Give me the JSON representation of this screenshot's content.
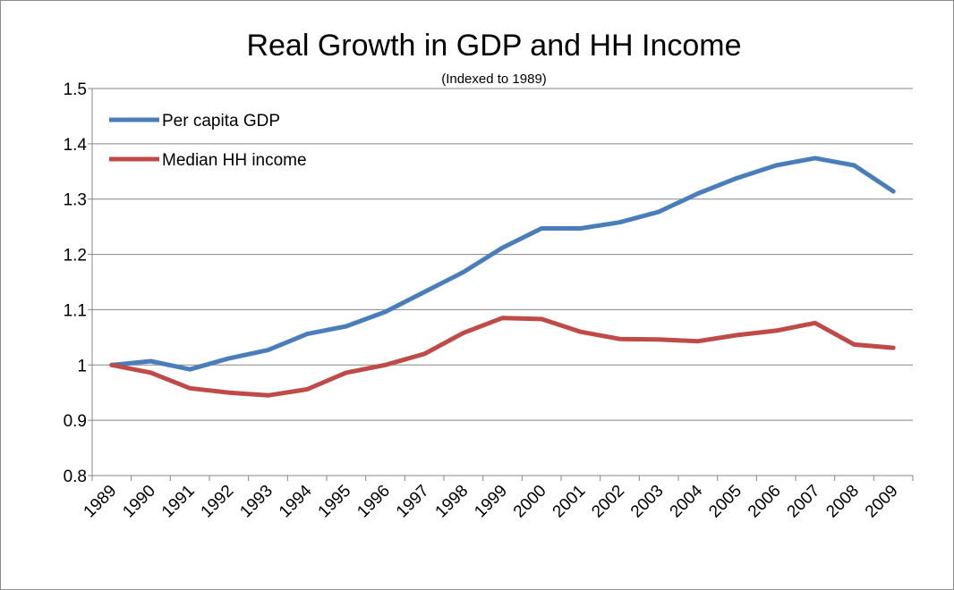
{
  "chart_data": {
    "type": "line",
    "title": "Real Growth in GDP and HH Income",
    "subtitle": "(Indexed to 1989)",
    "xlabel": "",
    "ylabel": "",
    "categories": [
      "1989",
      "1990",
      "1991",
      "1992",
      "1993",
      "1994",
      "1995",
      "1996",
      "1997",
      "1998",
      "1999",
      "2000",
      "2001",
      "2002",
      "2003",
      "2004",
      "2005",
      "2006",
      "2007",
      "2008",
      "2009"
    ],
    "ylim": [
      0.8,
      1.5
    ],
    "yticks": [
      0.8,
      0.9,
      1,
      1.1,
      1.2,
      1.3,
      1.4,
      1.5
    ],
    "ytick_labels": [
      "0.8",
      "0.9",
      "1",
      "1.1",
      "1.2",
      "1.3",
      "1.4",
      "1.5"
    ],
    "grid": true,
    "legend_position": "top-left",
    "series": [
      {
        "name": "Per capita GDP",
        "color": "#4a7ebb",
        "values": [
          1.0,
          1.007,
          0.992,
          1.012,
          1.027,
          1.056,
          1.07,
          1.096,
          1.132,
          1.168,
          1.212,
          1.247,
          1.247,
          1.258,
          1.277,
          1.31,
          1.338,
          1.361,
          1.374,
          1.361,
          1.314
        ]
      },
      {
        "name": "Median HH income",
        "color": "#be4b48",
        "values": [
          1.0,
          0.986,
          0.958,
          0.95,
          0.945,
          0.956,
          0.986,
          1.0,
          1.02,
          1.058,
          1.085,
          1.083,
          1.06,
          1.047,
          1.046,
          1.043,
          1.054,
          1.062,
          1.076,
          1.037,
          1.031
        ]
      }
    ]
  }
}
